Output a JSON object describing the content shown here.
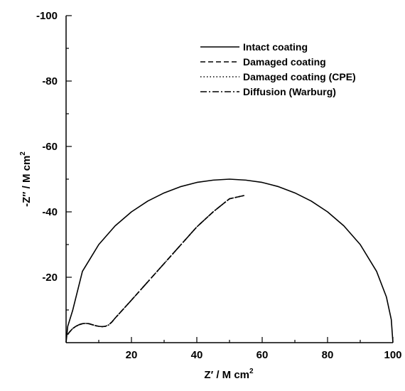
{
  "chart_data": {
    "type": "line",
    "title": "",
    "xlabel": {
      "main": "Z′ / M   cm",
      "sup": "2"
    },
    "ylabel": {
      "main": "-Z″ / M   cm",
      "sup": "2"
    },
    "xlim": [
      0,
      100
    ],
    "ylim": [
      0,
      -100
    ],
    "y_axis_inverted": true,
    "x_ticks": [
      20,
      40,
      60,
      80,
      100
    ],
    "x_tick_labels": [
      "20",
      "40",
      "60",
      "80",
      "100"
    ],
    "y_ticks": [
      -20,
      -40,
      -60,
      -80,
      -100
    ],
    "y_tick_labels": [
      "-20",
      "-40",
      "-60",
      "-80",
      "-100"
    ],
    "grid": false,
    "legend_position": "top-right",
    "series": [
      {
        "name": "Intact coating",
        "style": "solid",
        "x": [
          0,
          0.5,
          2,
          5,
          10,
          15,
          20,
          25,
          30,
          35,
          40,
          45,
          50,
          55,
          60,
          65,
          70,
          75,
          80,
          85,
          90,
          95,
          98,
          99.5,
          100
        ],
        "y": [
          0,
          -4.97,
          -9.8,
          -21.8,
          -30.0,
          -35.7,
          -40.0,
          -43.3,
          -45.8,
          -47.7,
          -49.0,
          -49.7,
          -50.0,
          -49.7,
          -49.0,
          -47.7,
          -45.8,
          -43.3,
          -40.0,
          -35.7,
          -30.0,
          -21.8,
          -14.0,
          -7.05,
          0
        ]
      },
      {
        "name": "Damaged coating",
        "style": "dashed",
        "x": [
          0.5,
          1,
          2,
          3,
          4,
          5,
          6,
          7,
          8,
          9,
          10,
          11,
          12,
          13,
          14,
          15,
          20,
          25,
          30,
          35,
          40,
          45,
          50,
          54.5
        ],
        "y": [
          -2.5,
          -3.2,
          -4.3,
          -5.0,
          -5.5,
          -5.8,
          -5.9,
          -5.8,
          -5.5,
          -5.2,
          -5.0,
          -4.9,
          -5.0,
          -5.4,
          -6.3,
          -7.5,
          -13.0,
          -18.6,
          -24.2,
          -29.8,
          -35.4,
          -40.0,
          -44.0,
          -45.0
        ]
      },
      {
        "name": "Damaged coating (CPE)",
        "style": "dotted",
        "x": [
          0.5,
          1,
          2,
          3,
          4,
          5,
          6,
          7,
          8,
          9,
          10,
          11,
          12,
          13,
          14,
          15,
          20,
          25,
          30,
          35,
          40,
          45,
          50,
          54.5
        ],
        "y": [
          -2.5,
          -3.2,
          -4.3,
          -5.0,
          -5.5,
          -5.8,
          -5.9,
          -5.8,
          -5.5,
          -5.2,
          -5.0,
          -4.9,
          -5.0,
          -5.4,
          -6.3,
          -7.5,
          -13.0,
          -18.6,
          -24.2,
          -29.8,
          -35.4,
          -40.0,
          -44.0,
          -45.0
        ]
      },
      {
        "name": "Diffusion (Warburg)",
        "style": "dashdot",
        "x": [
          0.5,
          1,
          2,
          3,
          4,
          5,
          6,
          7,
          8,
          9,
          10,
          11,
          12,
          13,
          14,
          15,
          20,
          25,
          30,
          35,
          40,
          45,
          50,
          54.5
        ],
        "y": [
          -2.5,
          -3.2,
          -4.3,
          -5.0,
          -5.5,
          -5.8,
          -5.9,
          -5.8,
          -5.5,
          -5.2,
          -5.0,
          -4.9,
          -5.0,
          -5.4,
          -6.3,
          -7.5,
          -13.0,
          -18.6,
          -24.2,
          -29.8,
          -35.4,
          -40.0,
          -44.0,
          -45.0
        ]
      }
    ]
  }
}
